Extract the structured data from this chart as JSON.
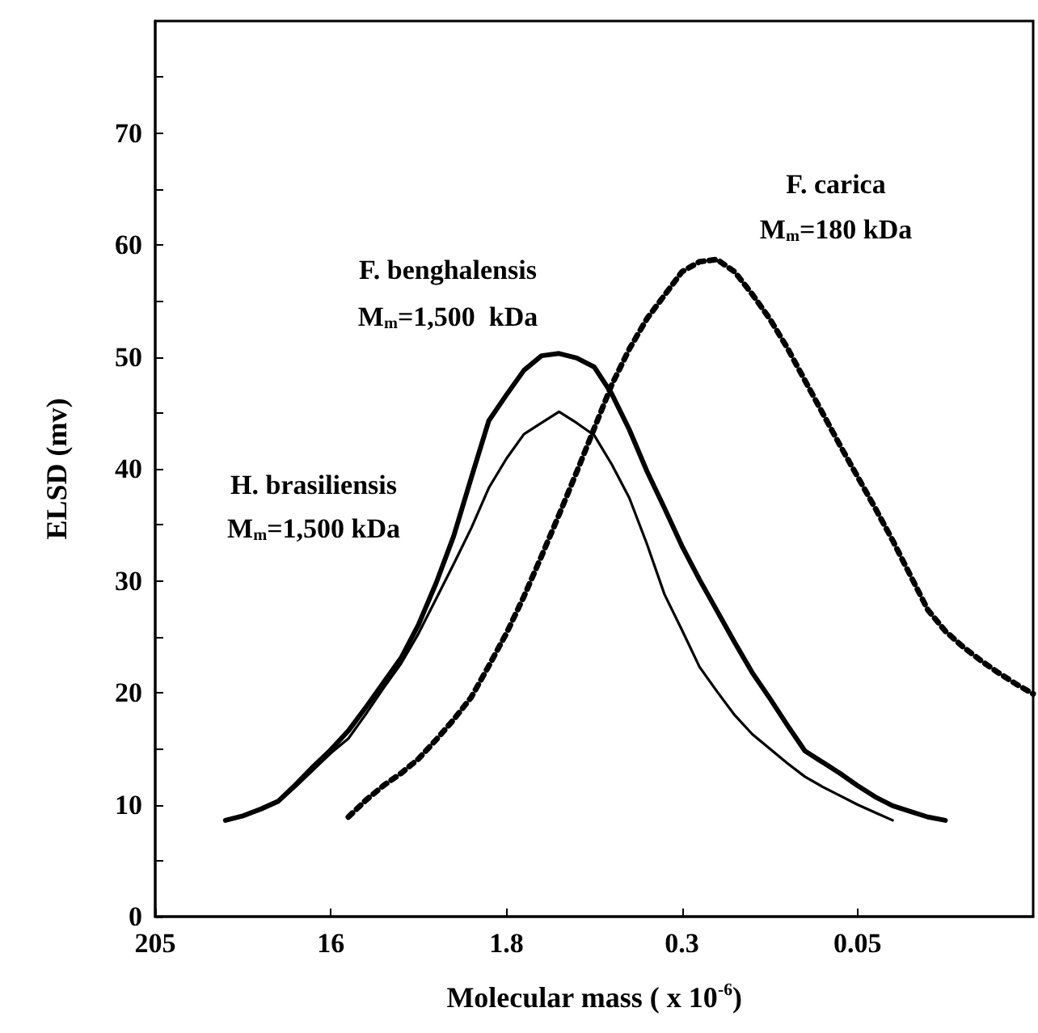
{
  "chart_data": {
    "type": "line",
    "xlabel": "Molecular mass ( x 10$^{-6}$)",
    "ylabel": "ELSD (mv)",
    "categories": [
      "205",
      null,
      null,
      null,
      null,
      null,
      null,
      null,
      null,
      null,
      "16",
      null,
      null,
      null,
      null,
      null,
      null,
      null,
      null,
      null,
      "1.8",
      null,
      null,
      null,
      null,
      null,
      null,
      null,
      null,
      null,
      "0.3",
      null,
      null,
      null,
      null,
      null,
      null,
      null,
      null,
      null,
      "0.05",
      null,
      null,
      null,
      null,
      null,
      null,
      null,
      null,
      null,
      null
    ],
    "ylim": [
      0,
      80
    ],
    "yticks": [
      0,
      {
        "value": 5,
        "label": null
      },
      10,
      {
        "value": 15,
        "label": null
      },
      20,
      {
        "value": 25,
        "label": null
      },
      30,
      {
        "value": 35,
        "label": null
      },
      40,
      {
        "value": 45,
        "label": null
      },
      50,
      {
        "value": 55,
        "label": null
      },
      60,
      {
        "value": 65,
        "label": null
      },
      70,
      {
        "value": 75,
        "label": null
      }
    ],
    "grid": false,
    "marker": "none",
    "series": [
      {
        "color": "#000000",
        "line_style": "solid",
        "values": [
          null,
          null,
          null,
          null,
          8.6,
          9.0,
          9.6,
          10.3,
          11.8,
          13.4,
          14.9,
          16.6,
          18.7,
          20.9,
          23.1,
          26.1,
          29.8,
          34.0,
          39.2,
          44.3,
          46.6,
          48.8,
          50.1,
          50.3,
          49.9,
          49.1,
          46.7,
          43.5,
          39.8,
          36.5,
          33.1,
          30.1,
          27.3,
          24.5,
          21.8,
          19.5,
          17.1,
          14.8,
          13.8,
          12.8,
          11.7,
          10.7,
          9.9,
          9.4,
          8.9,
          8.6,
          null,
          null,
          null,
          null,
          null
        ]
      },
      {
        "color": "#000000",
        "line_style": "solid",
        "values": [
          null,
          null,
          null,
          null,
          8.6,
          9.0,
          9.5,
          10.2,
          11.6,
          13.1,
          14.6,
          15.9,
          18.1,
          20.4,
          22.6,
          25.3,
          28.4,
          31.5,
          34.7,
          38.3,
          40.9,
          43.1,
          44.1,
          45.1,
          44.1,
          43.0,
          40.4,
          37.4,
          33.3,
          28.8,
          25.6,
          22.3,
          20.1,
          18.0,
          16.3,
          15.0,
          13.7,
          12.5,
          11.6,
          10.8,
          10.0,
          9.3,
          8.6,
          null,
          null,
          null,
          null,
          null,
          null,
          null,
          null
        ]
      },
      {
        "color": "#000000",
        "line_style": "dotted",
        "values": [
          null,
          null,
          null,
          null,
          null,
          null,
          null,
          null,
          null,
          null,
          null,
          8.9,
          10.4,
          11.7,
          12.8,
          14.1,
          15.8,
          17.6,
          19.6,
          22.4,
          25.3,
          28.6,
          32.2,
          35.9,
          39.7,
          43.6,
          47.5,
          50.7,
          53.4,
          55.5,
          57.6,
          58.5,
          58.7,
          57.6,
          55.6,
          53.4,
          50.8,
          47.9,
          45.0,
          42.1,
          39.3,
          36.5,
          33.6,
          30.5,
          27.4,
          25.5,
          24.1,
          22.9,
          21.8,
          20.8,
          19.9
        ]
      }
    ],
    "annotations": [
      "F. benghalensis",
      "M$_{m}$=1,500  kDa",
      "H. brasiliensis",
      "M$_{m}$=1,500 kDa",
      "F. carica",
      "M$_{m}$=180 kDa"
    ]
  }
}
